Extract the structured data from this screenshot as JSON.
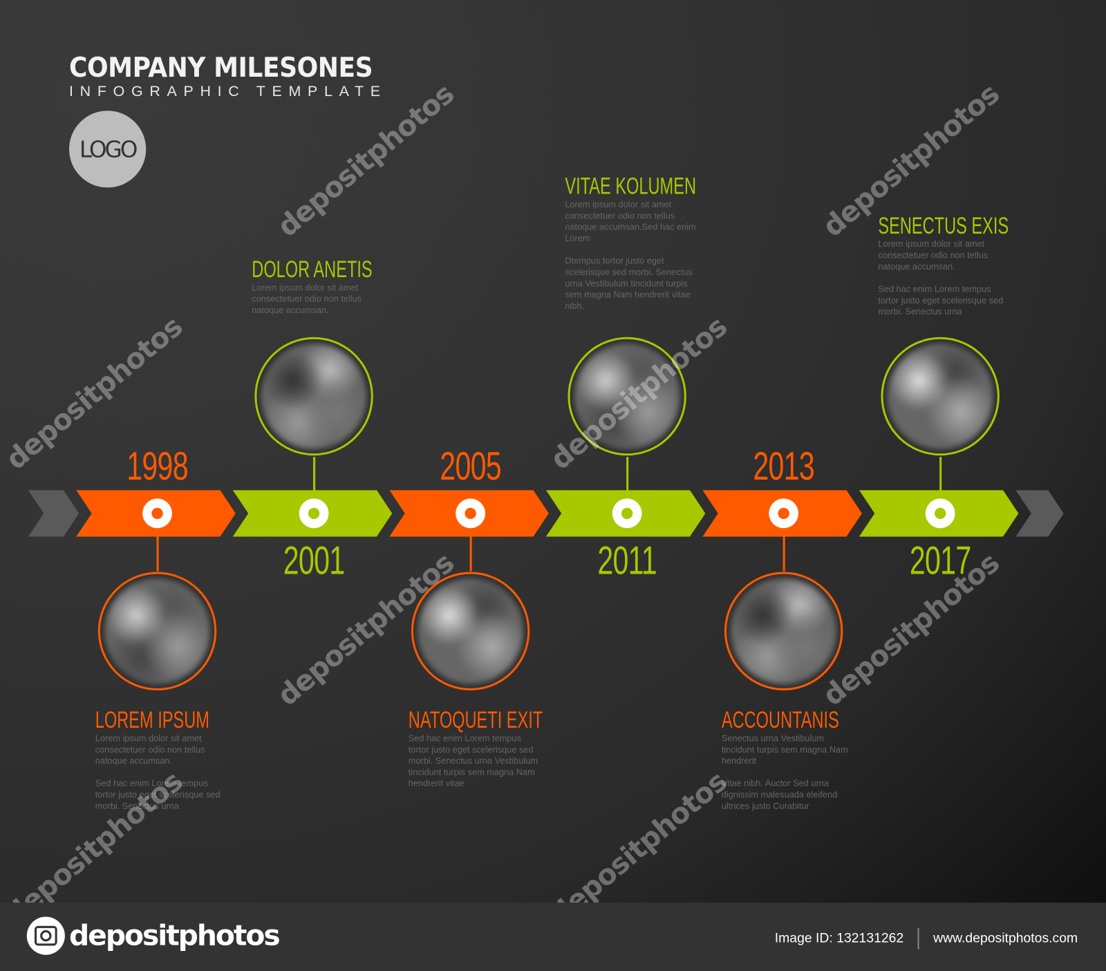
{
  "header": {
    "title": "COMPANY MILESONES",
    "subtitle": "INFOGRAPHIC TEMPLATE",
    "logo": "LOGO"
  },
  "colors": {
    "orange": "#ff5a00",
    "green": "#a8c800",
    "gray": "#5a5a5a",
    "background": "#333333"
  },
  "milestones": [
    {
      "year": "1998",
      "title": "LOREM IPSUM",
      "color": "orange",
      "position": "below",
      "paragraphs": [
        "Lorem ipsum dolor sit amet consectetuer odio non tellus natoque accumsan.",
        "Sed hac enim Lorem tempus tortor justo eget scelerisque sed morbi. Senectus urna"
      ]
    },
    {
      "year": "2001",
      "title": "DOLOR ANETIS",
      "color": "green",
      "position": "above",
      "paragraphs": [
        "Lorem ipsum dolor sit amet consectetuer odio non tellus natoque accumsan."
      ]
    },
    {
      "year": "2005",
      "title": "NATOQUETI EXIT",
      "color": "orange",
      "position": "below",
      "paragraphs": [
        "Sed hac enim Lorem tempus tortor justo eget scelerisque sed morbi. Senectus urna Vestibulum tincidunt turpis sem magna Nam hendrerit vitae"
      ]
    },
    {
      "year": "2011",
      "title": "VITAE KOLUMEN",
      "color": "green",
      "position": "above",
      "paragraphs": [
        "Lorem ipsum dolor sit amet consectetuer odio non tellus natoque accumsan.Sed hac enim Lorem",
        "Dtempus tortor justo eget scelerisque sed morbi. Senectus urna Vestibulum tincidunt turpis sem magna Nam hendrerit vitae nibh."
      ]
    },
    {
      "year": "2013",
      "title": "ACCOUNTANIS",
      "color": "orange",
      "position": "below",
      "paragraphs": [
        "Senectus urna Vestibulum tincidunt turpis sem magna Nam hendrerit",
        "Vitae nibh. Auctor Sed urna dignissim malesuada eleifend ultrices justo Curabitur"
      ]
    },
    {
      "year": "2017",
      "title": "SENECTUS EXIS",
      "color": "green",
      "position": "above",
      "paragraphs": [
        "Lorem ipsum dolor sit amet consectetuer odio non tellus natoque accumsan.",
        "Sed hac enim Lorem tempus tortor justo eget scelerisque sed morbi. Senectus urna"
      ]
    }
  ],
  "watermark": "depositphotos",
  "footer": {
    "brand": "depositphotos",
    "image_id": "Image ID: 132131262",
    "url": "www.depositphotos.com"
  }
}
